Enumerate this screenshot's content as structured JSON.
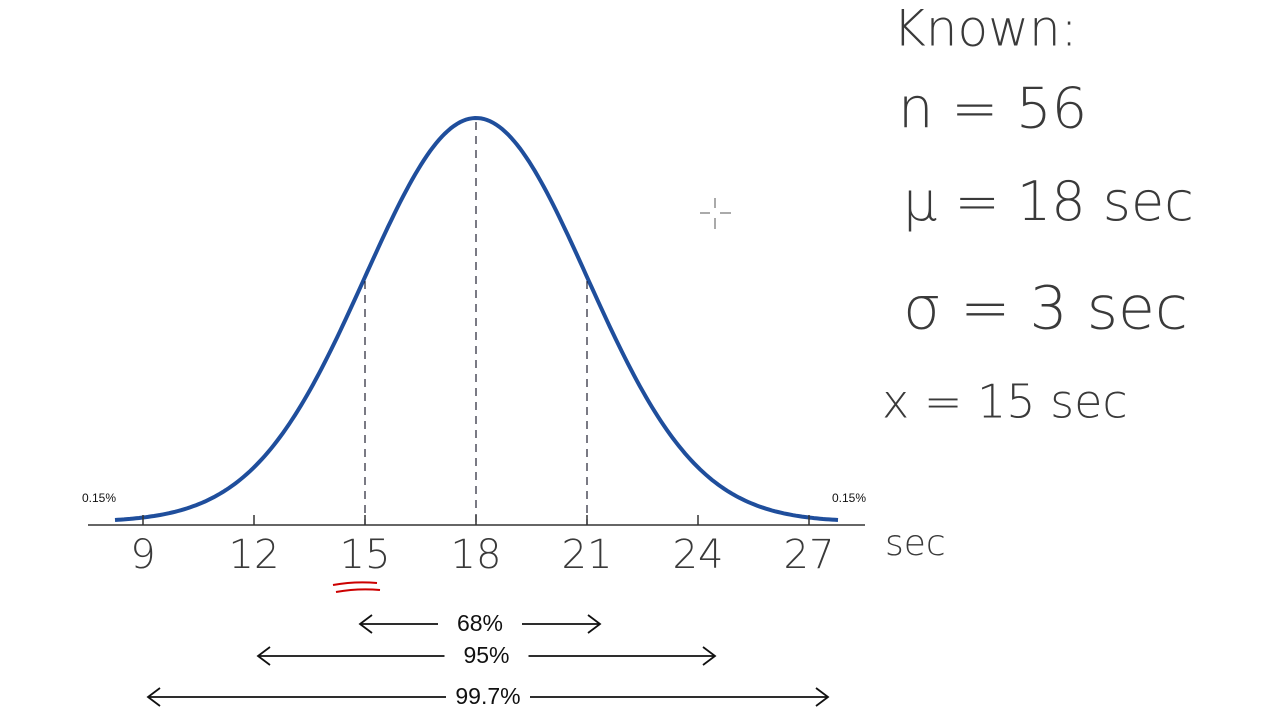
{
  "axis": {
    "ticks": [
      9,
      12,
      15,
      18,
      21,
      24,
      27
    ],
    "unit": "sec"
  },
  "tail_labels": [
    "0.15%",
    "0.15%"
  ],
  "ranges": [
    "68%",
    "95%",
    "99.7%"
  ],
  "notes": {
    "title": "Known:",
    "lines": [
      "n = 56",
      "μ = 18 sec",
      "σ = 3 sec",
      "x = 15 sec"
    ]
  }
}
